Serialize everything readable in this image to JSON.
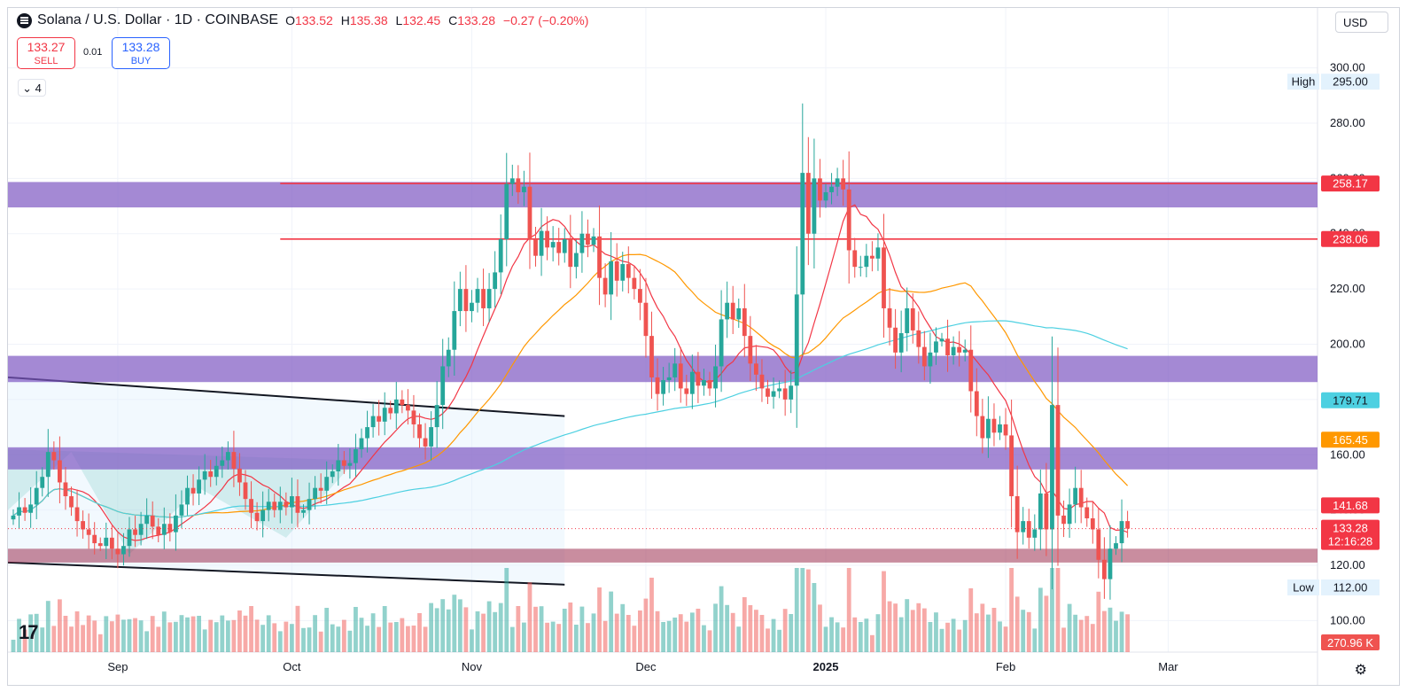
{
  "header": {
    "title": "Solana / U.S. Dollar · 1D · COINBASE",
    "open_label": "O",
    "open": "133.52",
    "high_label": "H",
    "high": "135.38",
    "low_label": "L",
    "low": "132.45",
    "close_label": "C",
    "close": "133.28",
    "change": "−0.27 (−0.20%)"
  },
  "trade": {
    "sell_price": "133.27",
    "sell_label": "SELL",
    "spread": "0.01",
    "buy_price": "133.28",
    "buy_label": "BUY"
  },
  "indicators_count": "4",
  "currency": "USD",
  "colors": {
    "up": "#26a69a",
    "down": "#ef5350",
    "accent": "#2962ff",
    "zone": "#7e57c2",
    "support": "#9c2f50"
  },
  "chart_data": {
    "type": "candlestick",
    "ylim": [
      95,
      305
    ],
    "y_ticks": [
      "300.00",
      "280.00",
      "260.00",
      "240.00",
      "220.00",
      "200.00",
      "180.00",
      "160.00",
      "140.00",
      "120.00",
      "100.00"
    ],
    "x_ticks": [
      {
        "label": "Sep",
        "date": "2024-09-01",
        "bold": false
      },
      {
        "label": "Oct",
        "date": "2024-10-01",
        "bold": false
      },
      {
        "label": "Nov",
        "date": "2024-11-01",
        "bold": false
      },
      {
        "label": "Dec",
        "date": "2024-12-01",
        "bold": false
      },
      {
        "label": "2025",
        "date": "2025-01-01",
        "bold": true
      },
      {
        "label": "Feb",
        "date": "2025-02-01",
        "bold": false
      },
      {
        "label": "Mar",
        "date": "2025-03-01",
        "bold": false
      }
    ],
    "first_date": "2024-08-14",
    "closes": [
      138,
      141,
      139,
      142,
      148,
      152,
      161,
      158,
      150,
      145,
      141,
      136,
      133,
      131,
      128,
      127,
      130,
      126,
      124,
      127,
      133,
      131,
      135,
      138,
      134,
      131,
      135,
      132,
      138,
      142,
      148,
      146,
      151,
      154,
      152,
      156,
      158,
      161,
      155,
      150,
      144,
      139,
      136,
      140,
      143,
      140,
      143,
      141,
      145,
      139,
      140,
      144,
      148,
      147,
      152,
      154,
      158,
      156,
      157,
      162,
      166,
      170,
      174,
      172,
      177,
      175,
      180,
      178,
      176,
      171,
      166,
      163,
      170,
      178,
      192,
      198,
      212,
      220,
      212,
      215,
      220,
      213,
      220,
      226,
      238,
      258,
      260,
      255,
      257,
      238,
      232,
      241,
      235,
      237,
      233,
      238,
      228,
      233,
      240,
      236,
      239,
      224,
      218,
      230,
      223,
      229,
      224,
      220,
      215,
      203,
      188,
      182,
      187,
      188,
      193,
      184,
      182,
      190,
      185,
      187,
      184,
      192,
      209,
      215,
      209,
      213,
      203,
      193,
      189,
      184,
      181,
      183,
      184,
      180,
      185,
      218,
      262,
      240,
      260,
      252,
      255,
      257,
      260,
      256,
      234,
      228,
      228,
      232,
      231,
      235,
      213,
      206,
      197,
      204,
      213,
      205,
      199,
      192,
      197,
      201,
      202,
      196,
      199,
      197,
      198,
      183,
      174,
      166,
      173,
      168,
      171,
      167,
      145,
      132,
      136,
      130,
      133,
      146,
      133,
      178,
      138,
      135,
      142,
      148,
      141,
      137,
      133,
      122,
      115,
      126,
      128,
      136,
      133.28
    ],
    "volume": {
      "max_label": "270.96 K"
    },
    "levels": [
      {
        "price": 258.17,
        "label": "258.17",
        "color": "#f23645"
      },
      {
        "price": 238.06,
        "label": "238.06",
        "color": "#f23645"
      }
    ],
    "zones": [
      {
        "from": 249.5,
        "to": 258.7
      },
      {
        "from": 186.3,
        "to": 195.8
      },
      {
        "from": 154.7,
        "to": 162.7
      },
      {
        "from": 121.0,
        "to": 126.0
      }
    ],
    "ma_labels": [
      {
        "value": 179.71,
        "label": "179.71",
        "color": "#4dd0e1"
      },
      {
        "value": 165.45,
        "label": "165.45",
        "color": "#ff9800"
      },
      {
        "value": 141.68,
        "label": "141.68",
        "color": "#f23645"
      }
    ],
    "current": {
      "price": 133.28,
      "label": "133.28",
      "countdown": "12:16:28"
    },
    "high_marker": {
      "label": "High",
      "value": "295.00"
    },
    "low_marker": {
      "label": "Low",
      "value": "112.00"
    }
  }
}
